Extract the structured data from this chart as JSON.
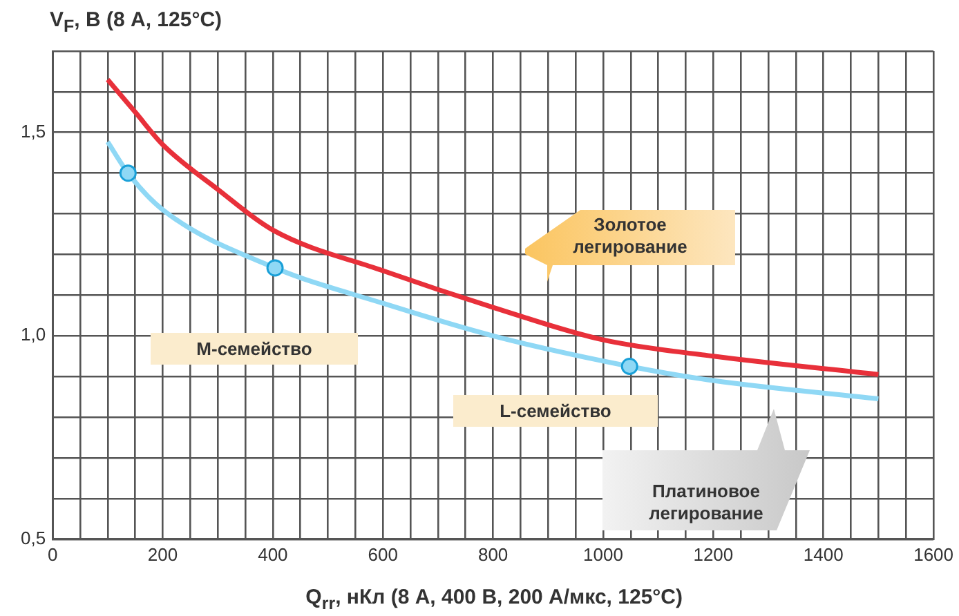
{
  "chart_data": {
    "type": "line",
    "xlabel": "Q$_{rr}$, нКл (8 А, 400 В, 200 А/мкс, 125°C)",
    "ylabel": "V$_{F}$, В (8 А, 125°C)",
    "series": [
      {
        "color": "#e8303a",
        "x": [
          100,
          150,
          200,
          300,
          400,
          600,
          800,
          1000,
          1200,
          1500
        ],
        "values": [
          1.63,
          1.55,
          1.47,
          1.36,
          1.26,
          1.16,
          1.07,
          0.99,
          0.95,
          0.905
        ]
      },
      {
        "color": "#8fd8f5",
        "x": [
          100,
          137,
          200,
          404,
          600,
          800,
          1048,
          1200,
          1500
        ],
        "values": [
          1.477,
          1.4,
          1.31,
          1.167,
          1.08,
          1.0,
          0.925,
          0.89,
          0.845
        ]
      },
      {
        "type": "scatter",
        "color": "#8fd8f5",
        "x": [
          137,
          404,
          1048
        ],
        "values": [
          1.4,
          1.167,
          0.925
        ]
      }
    ],
    "xlim": [
      0,
      1600
    ],
    "ylim": [
      0.5,
      1.7
    ],
    "xticks": [
      0,
      {
        "value": 50,
        "label": null
      },
      {
        "value": 100,
        "label": null
      },
      {
        "value": 150,
        "label": null
      },
      200,
      {
        "value": 250,
        "label": null
      },
      {
        "value": 300,
        "label": null
      },
      {
        "value": 350,
        "label": null
      },
      400,
      {
        "value": 450,
        "label": null
      },
      {
        "value": 500,
        "label": null
      },
      {
        "value": 550,
        "label": null
      },
      600,
      {
        "value": 650,
        "label": null
      },
      {
        "value": 700,
        "label": null
      },
      {
        "value": 750,
        "label": null
      },
      800,
      {
        "value": 850,
        "label": null
      },
      {
        "value": 900,
        "label": null
      },
      {
        "value": 950,
        "label": null
      },
      1000,
      {
        "value": 1050,
        "label": null
      },
      {
        "value": 1100,
        "label": null
      },
      {
        "value": 1150,
        "label": null
      },
      1200,
      {
        "value": 1250,
        "label": null
      },
      {
        "value": 1300,
        "label": null
      },
      {
        "value": 1350,
        "label": null
      },
      1400,
      {
        "value": 1450,
        "label": null
      },
      {
        "value": 1500,
        "label": null
      },
      {
        "value": 1550,
        "label": null
      },
      1600
    ],
    "yticks": [
      {
        "value": 0.5,
        "label": "0,5"
      },
      {
        "value": 0.6,
        "label": null
      },
      {
        "value": 0.7,
        "label": null
      },
      {
        "value": 0.8,
        "label": null
      },
      {
        "value": 0.9,
        "label": null
      },
      {
        "value": 1.0,
        "label": "1,0"
      },
      {
        "value": 1.1,
        "label": null
      },
      {
        "value": 1.2,
        "label": null
      },
      {
        "value": 1.3,
        "label": null
      },
      {
        "value": 1.4,
        "label": null
      },
      {
        "value": 1.5,
        "label": "1,5"
      },
      {
        "value": 1.6,
        "label": null
      },
      {
        "value": 1.7,
        "label": null
      }
    ],
    "grid": true,
    "legend": false,
    "annotations": [
      "Золотое легирование",
      "M-семейство",
      "L-семейство",
      "Платиновое легирование"
    ]
  }
}
